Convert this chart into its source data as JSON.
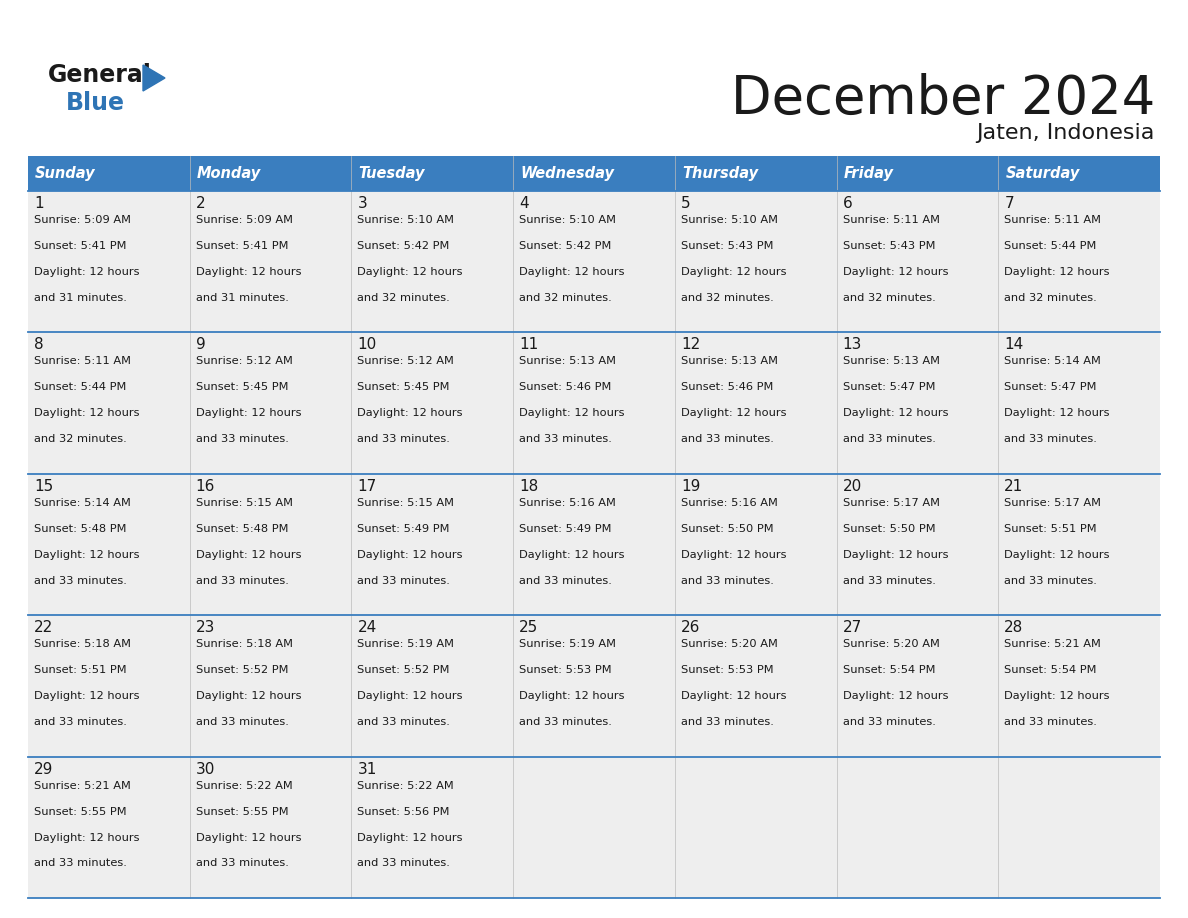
{
  "title": "December 2024",
  "subtitle": "Jaten, Indonesia",
  "header_color": "#3a7ebf",
  "header_text_color": "#ffffff",
  "cell_bg_color": "#eeeeee",
  "border_color": "#3a7ebf",
  "text_color": "#1a1a1a",
  "day_names": [
    "Sunday",
    "Monday",
    "Tuesday",
    "Wednesday",
    "Thursday",
    "Friday",
    "Saturday"
  ],
  "weeks": [
    [
      {
        "day": "1",
        "sunrise": "5:09 AM",
        "sunset": "5:41 PM",
        "daylight": "12 hours",
        "daylight2": "and 31 minutes."
      },
      {
        "day": "2",
        "sunrise": "5:09 AM",
        "sunset": "5:41 PM",
        "daylight": "12 hours",
        "daylight2": "and 31 minutes."
      },
      {
        "day": "3",
        "sunrise": "5:10 AM",
        "sunset": "5:42 PM",
        "daylight": "12 hours",
        "daylight2": "and 32 minutes."
      },
      {
        "day": "4",
        "sunrise": "5:10 AM",
        "sunset": "5:42 PM",
        "daylight": "12 hours",
        "daylight2": "and 32 minutes."
      },
      {
        "day": "5",
        "sunrise": "5:10 AM",
        "sunset": "5:43 PM",
        "daylight": "12 hours",
        "daylight2": "and 32 minutes."
      },
      {
        "day": "6",
        "sunrise": "5:11 AM",
        "sunset": "5:43 PM",
        "daylight": "12 hours",
        "daylight2": "and 32 minutes."
      },
      {
        "day": "7",
        "sunrise": "5:11 AM",
        "sunset": "5:44 PM",
        "daylight": "12 hours",
        "daylight2": "and 32 minutes."
      }
    ],
    [
      {
        "day": "8",
        "sunrise": "5:11 AM",
        "sunset": "5:44 PM",
        "daylight": "12 hours",
        "daylight2": "and 32 minutes."
      },
      {
        "day": "9",
        "sunrise": "5:12 AM",
        "sunset": "5:45 PM",
        "daylight": "12 hours",
        "daylight2": "and 33 minutes."
      },
      {
        "day": "10",
        "sunrise": "5:12 AM",
        "sunset": "5:45 PM",
        "daylight": "12 hours",
        "daylight2": "and 33 minutes."
      },
      {
        "day": "11",
        "sunrise": "5:13 AM",
        "sunset": "5:46 PM",
        "daylight": "12 hours",
        "daylight2": "and 33 minutes."
      },
      {
        "day": "12",
        "sunrise": "5:13 AM",
        "sunset": "5:46 PM",
        "daylight": "12 hours",
        "daylight2": "and 33 minutes."
      },
      {
        "day": "13",
        "sunrise": "5:13 AM",
        "sunset": "5:47 PM",
        "daylight": "12 hours",
        "daylight2": "and 33 minutes."
      },
      {
        "day": "14",
        "sunrise": "5:14 AM",
        "sunset": "5:47 PM",
        "daylight": "12 hours",
        "daylight2": "and 33 minutes."
      }
    ],
    [
      {
        "day": "15",
        "sunrise": "5:14 AM",
        "sunset": "5:48 PM",
        "daylight": "12 hours",
        "daylight2": "and 33 minutes."
      },
      {
        "day": "16",
        "sunrise": "5:15 AM",
        "sunset": "5:48 PM",
        "daylight": "12 hours",
        "daylight2": "and 33 minutes."
      },
      {
        "day": "17",
        "sunrise": "5:15 AM",
        "sunset": "5:49 PM",
        "daylight": "12 hours",
        "daylight2": "and 33 minutes."
      },
      {
        "day": "18",
        "sunrise": "5:16 AM",
        "sunset": "5:49 PM",
        "daylight": "12 hours",
        "daylight2": "and 33 minutes."
      },
      {
        "day": "19",
        "sunrise": "5:16 AM",
        "sunset": "5:50 PM",
        "daylight": "12 hours",
        "daylight2": "and 33 minutes."
      },
      {
        "day": "20",
        "sunrise": "5:17 AM",
        "sunset": "5:50 PM",
        "daylight": "12 hours",
        "daylight2": "and 33 minutes."
      },
      {
        "day": "21",
        "sunrise": "5:17 AM",
        "sunset": "5:51 PM",
        "daylight": "12 hours",
        "daylight2": "and 33 minutes."
      }
    ],
    [
      {
        "day": "22",
        "sunrise": "5:18 AM",
        "sunset": "5:51 PM",
        "daylight": "12 hours",
        "daylight2": "and 33 minutes."
      },
      {
        "day": "23",
        "sunrise": "5:18 AM",
        "sunset": "5:52 PM",
        "daylight": "12 hours",
        "daylight2": "and 33 minutes."
      },
      {
        "day": "24",
        "sunrise": "5:19 AM",
        "sunset": "5:52 PM",
        "daylight": "12 hours",
        "daylight2": "and 33 minutes."
      },
      {
        "day": "25",
        "sunrise": "5:19 AM",
        "sunset": "5:53 PM",
        "daylight": "12 hours",
        "daylight2": "and 33 minutes."
      },
      {
        "day": "26",
        "sunrise": "5:20 AM",
        "sunset": "5:53 PM",
        "daylight": "12 hours",
        "daylight2": "and 33 minutes."
      },
      {
        "day": "27",
        "sunrise": "5:20 AM",
        "sunset": "5:54 PM",
        "daylight": "12 hours",
        "daylight2": "and 33 minutes."
      },
      {
        "day": "28",
        "sunrise": "5:21 AM",
        "sunset": "5:54 PM",
        "daylight": "12 hours",
        "daylight2": "and 33 minutes."
      }
    ],
    [
      {
        "day": "29",
        "sunrise": "5:21 AM",
        "sunset": "5:55 PM",
        "daylight": "12 hours",
        "daylight2": "and 33 minutes."
      },
      {
        "day": "30",
        "sunrise": "5:22 AM",
        "sunset": "5:55 PM",
        "daylight": "12 hours",
        "daylight2": "and 33 minutes."
      },
      {
        "day": "31",
        "sunrise": "5:22 AM",
        "sunset": "5:56 PM",
        "daylight": "12 hours",
        "daylight2": "and 33 minutes."
      },
      null,
      null,
      null,
      null
    ]
  ],
  "logo_general_color": "#1a1a1a",
  "logo_blue_color": "#2e74b5"
}
